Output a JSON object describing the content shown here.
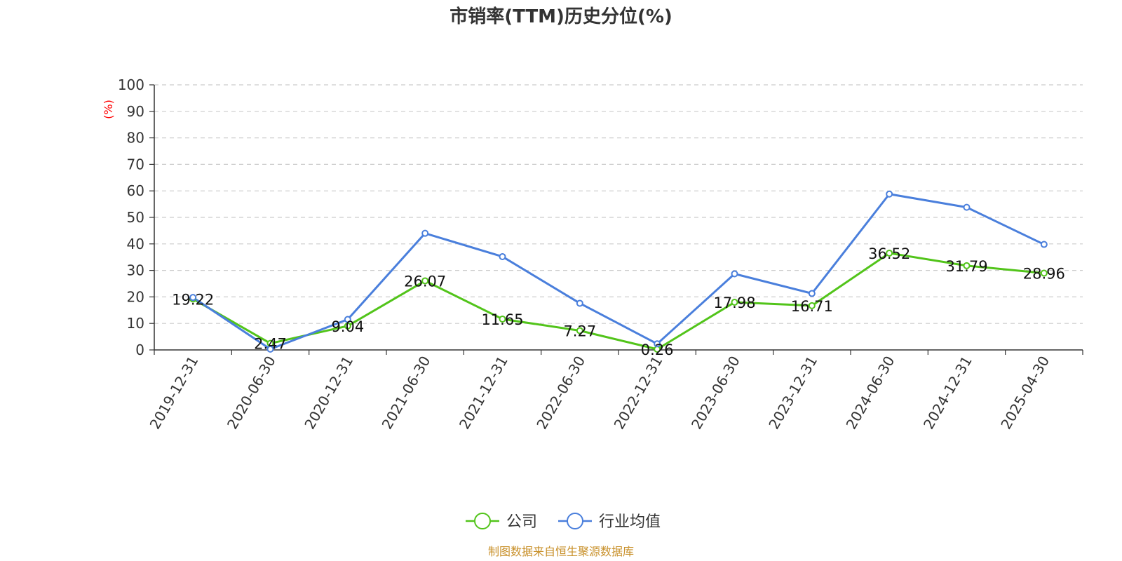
{
  "chart_data": {
    "type": "line",
    "title": "市销率(TTM)历史分位(%)",
    "ylabel": "(%)",
    "ylim": [
      0,
      100
    ],
    "yticks": [
      0,
      10,
      20,
      30,
      40,
      50,
      60,
      70,
      80,
      90,
      100
    ],
    "grid": true,
    "legend_position": "bottom-center",
    "categories": [
      "2019-12-31",
      "2020-06-30",
      "2020-12-31",
      "2021-06-30",
      "2021-12-31",
      "2022-06-30",
      "2022-12-31",
      "2023-06-30",
      "2023-12-31",
      "2024-06-30",
      "2024-12-31",
      "2025-04-30"
    ],
    "series": [
      {
        "name": "公司",
        "color": "#52c41a",
        "values": [
          19.22,
          2.47,
          9.04,
          26.07,
          11.65,
          7.27,
          0.26,
          17.98,
          16.71,
          36.52,
          31.79,
          28.96
        ],
        "labels": [
          "19.22",
          "2.47",
          "9.04",
          "26.07",
          "11.65",
          "7.27",
          "0.26",
          "17.98",
          "16.71",
          "36.52",
          "31.79",
          "28.96"
        ]
      },
      {
        "name": "行业均值",
        "color": "#4a7fdc",
        "values": [
          19.8,
          0.3,
          11.5,
          44.0,
          35.2,
          17.6,
          2.3,
          28.7,
          21.3,
          58.8,
          53.8,
          39.8
        ]
      }
    ],
    "source": "制图数据来自恒生聚源数据库"
  }
}
